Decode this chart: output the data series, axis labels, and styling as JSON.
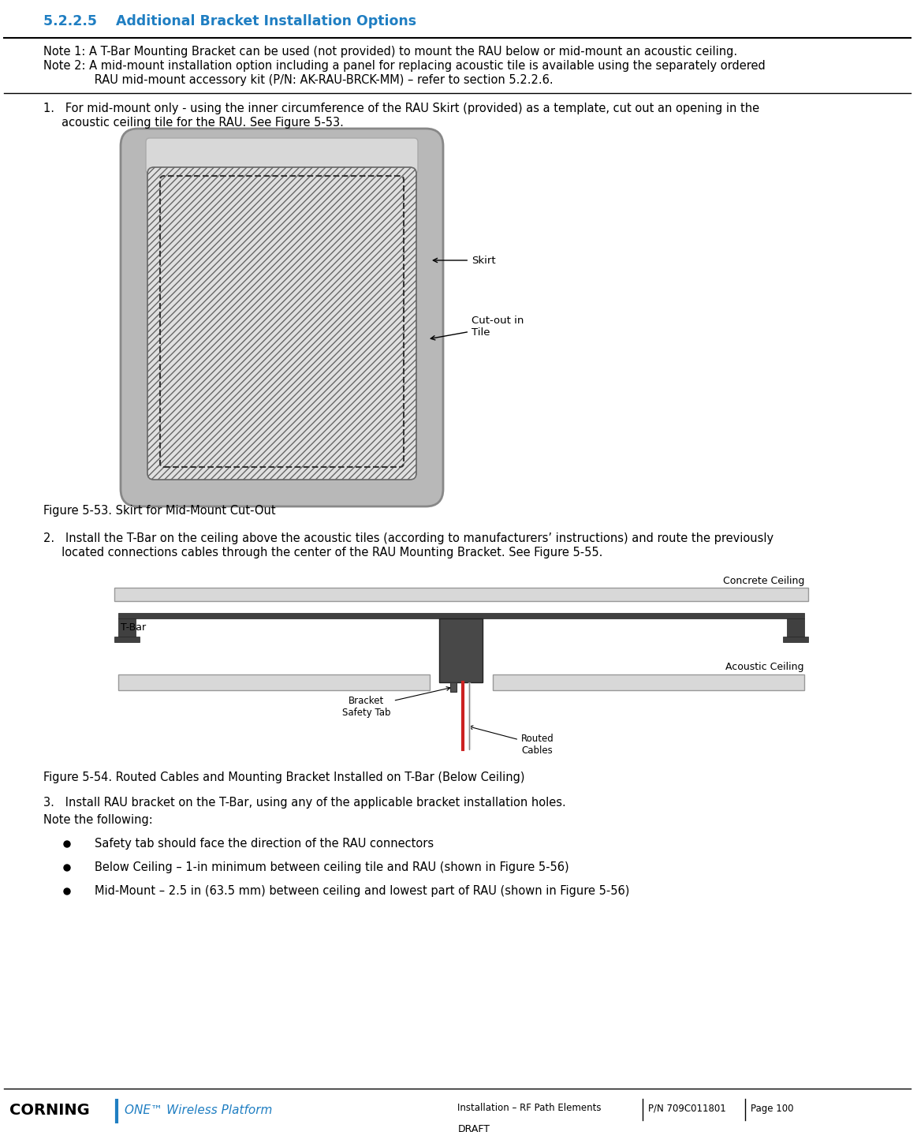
{
  "title": "5.2.2.5    Additional Bracket Installation Options",
  "title_color": "#1F7EC2",
  "title_fontsize": 12.5,
  "note1": "Note 1: A T-Bar Mounting Bracket can be used (not provided) to mount the RAU below or mid-mount an acoustic ceiling.",
  "note2": "Note 2: A mid-mount installation option including a panel for replacing acoustic tile is available using the separately ordered",
  "note2b": "              RAU mid-mount accessory kit (P/N: AK-RAU-BRCK-MM) – refer to section 5.2.2.6.",
  "step1_a": "1.   For mid-mount only - using the inner circumference of the RAU Skirt (provided) as a template, cut out an opening in the",
  "step1_b": "     acoustic ceiling tile for the RAU. See Figure 5-53.",
  "fig1_caption": "Figure 5-53. Skirt for Mid-Mount Cut-Out",
  "step2_a": "2.   Install the T-Bar on the ceiling above the acoustic tiles (according to manufacturers’ instructions) and route the previously",
  "step2_b": "     located connections cables through the center of the RAU Mounting Bracket. See Figure 5-55.",
  "fig2_caption": "Figure 5-54. Routed Cables and Mounting Bracket Installed on T-Bar (Below Ceiling)",
  "step3": "3.   Install RAU bracket on the T-Bar, using any of the applicable bracket installation holes.",
  "note_follow": "Note the following:",
  "bullet1": "Safety tab should face the direction of the RAU connectors",
  "bullet2": "Below Ceiling – 1-in minimum between ceiling tile and RAU (shown in Figure 5-56)",
  "bullet3": "Mid-Mount – 2.5 in (63.5 mm) between ceiling and lowest part of RAU (shown in Figure 5-56)",
  "footer_center": "Installation – RF Path Elements",
  "footer_pn": "P/N 709C011801",
  "footer_page": "Page 100",
  "footer_draft": "DRAFT",
  "bg_color": "#ffffff",
  "text_color": "#000000",
  "body_fontsize": 10.5
}
